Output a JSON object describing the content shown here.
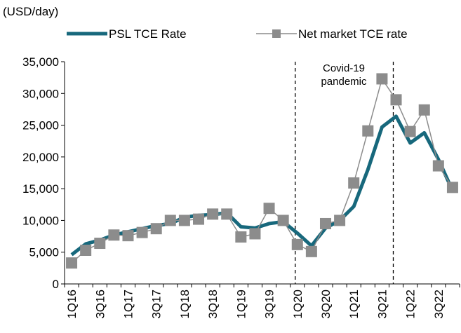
{
  "chart_data": {
    "type": "line",
    "unit_label": "(USD/day)",
    "categories": [
      "1Q16",
      null,
      "3Q16",
      null,
      "1Q17",
      null,
      "3Q17",
      null,
      "1Q18",
      null,
      "3Q18",
      null,
      "1Q19",
      null,
      "3Q19",
      null,
      "1Q20",
      null,
      "3Q20",
      null,
      "1Q21",
      null,
      "3Q21",
      null,
      "1Q22",
      null,
      "3Q22",
      null
    ],
    "series": [
      {
        "name": "PSL TCE Rate",
        "color": "#17687c",
        "marker": "none",
        "values": [
          4600,
          6300,
          6900,
          7700,
          8200,
          8700,
          9200,
          9500,
          10500,
          10800,
          10900,
          11200,
          9000,
          8800,
          9500,
          9800,
          8000,
          6000,
          8800,
          10000,
          12200,
          18000,
          24700,
          26400,
          22200,
          23800,
          19600,
          14700
        ]
      },
      {
        "name": "Net market TCE rate",
        "color": "#8c8c8c",
        "marker": "square",
        "values": [
          3300,
          5300,
          6400,
          7700,
          7600,
          8100,
          8700,
          10000,
          10000,
          10200,
          11000,
          11000,
          7400,
          7900,
          11900,
          10000,
          6200,
          5100,
          9500,
          10000,
          15900,
          24100,
          32300,
          29000,
          24000,
          27400,
          18600,
          15200
        ]
      }
    ],
    "annotation": [
      "Covid-19",
      "pandemic"
    ],
    "ylim": [
      0,
      35000
    ],
    "yticks": [
      0,
      {
        "value": 5000,
        "label": "5,000"
      },
      {
        "value": 10000,
        "label": "10,000"
      },
      {
        "value": 15000,
        "label": "15,000"
      },
      {
        "value": 20000,
        "label": "20,000"
      },
      {
        "value": 25000,
        "label": "25,000"
      },
      {
        "value": 30000,
        "label": "30,000"
      },
      {
        "value": 35000,
        "label": "35,000"
      }
    ],
    "grid": false
  }
}
